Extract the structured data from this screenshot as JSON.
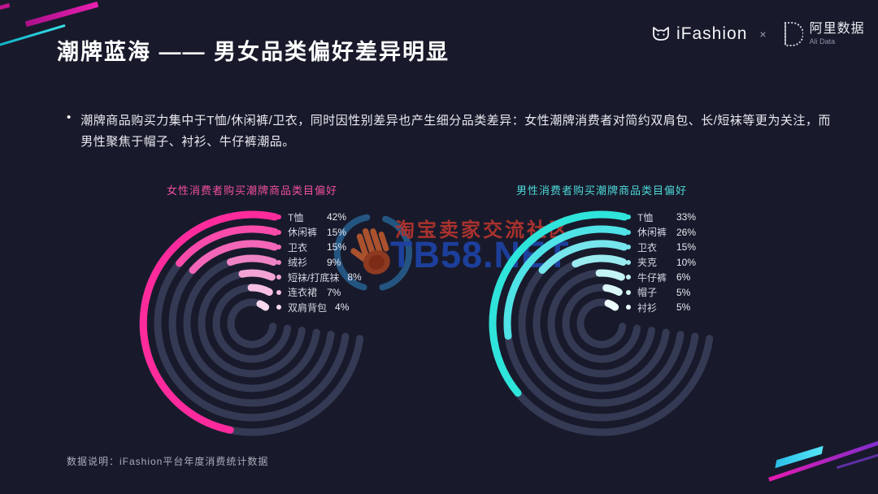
{
  "header": {
    "title": "潮牌蓝海 —— 男女品类偏好差异明显",
    "logo_ifashion": "iFashion",
    "logo_separator": "×",
    "logo_ali": "阿里数据",
    "logo_ali_sub": "Ali Data"
  },
  "bullet": {
    "marker": "•",
    "text": "潮牌商品购买力集中于T恤/休闲裤/卫衣，同时因性别差异也产生细分品类差异：女性潮牌消费者对简约双肩包、长/短袜等更为关注，而男性聚焦于帽子、衬衫、牛仔裤潮品。"
  },
  "watermark": {
    "community": "淘宝卖家交流社区",
    "site": "TB58.NET"
  },
  "footer": {
    "note": "数据说明：iFashion平台年度消费统计数据"
  },
  "colors": {
    "background": "#181a2b",
    "accent_pink": "#ff2b9d",
    "accent_cyan": "#2fe4da",
    "ring_track": "#353a54",
    "watermark_red": "#b0342e",
    "watermark_blue": "#1e41a0"
  },
  "chart_data": [
    {
      "type": "radial-bar",
      "title": "女性消费者购买潮牌商品类目偏好",
      "title_color": "#ef4f9f",
      "categories": [
        "T恤",
        "休闲裤",
        "卫衣",
        "绒衫",
        "短袜/打底袜",
        "连衣裙",
        "双肩背包"
      ],
      "values": [
        42,
        15,
        15,
        9,
        8,
        7,
        4
      ],
      "unit": "%",
      "bar_colors": [
        "#ff2b9d",
        "#fa4bab",
        "#f466b8",
        "#ee84c5",
        "#f2a5d5",
        "#f6bfe3",
        "#f9d9ef"
      ],
      "track_color": "#353a54",
      "legend_position": "top-right",
      "degrees_per_percent": 4.3
    },
    {
      "type": "radial-bar",
      "title": "男性消费者购买潮牌商品类目偏好",
      "title_color": "#4dd8d8",
      "categories": [
        "T恤",
        "休闲裤",
        "卫衣",
        "夹克",
        "牛仔裤",
        "帽子",
        "衬衫"
      ],
      "values": [
        33,
        26,
        15,
        10,
        6,
        5,
        5
      ],
      "unit": "%",
      "bar_colors": [
        "#2fe4da",
        "#4fe2e6",
        "#76e6ec",
        "#9aebf0",
        "#c4f3f4",
        "#daf8f8",
        "#ecfcfc"
      ],
      "track_color": "#353a54",
      "legend_position": "top-right",
      "degrees_per_percent": 4.3
    }
  ]
}
